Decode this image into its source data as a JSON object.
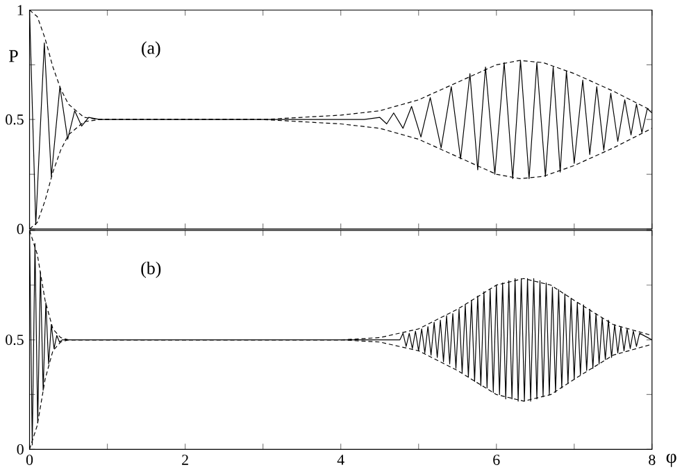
{
  "chart_data": [
    {
      "type": "line",
      "ylabel": "P",
      "annotations": [
        "(a)"
      ],
      "xlim": [
        0,
        8
      ],
      "ylim": [
        0,
        1
      ],
      "xticks": [
        0,
        {
          "value": 1,
          "label": null
        },
        2,
        {
          "value": 3,
          "label": null
        },
        4,
        {
          "value": 5,
          "label": null
        },
        6,
        {
          "value": 7,
          "label": null
        },
        8
      ],
      "yticks": [
        0,
        {
          "value": 0.25,
          "label": null
        },
        0.5,
        {
          "value": 0.75,
          "label": null
        },
        1
      ],
      "tick_labels": "y",
      "marker": "none",
      "series": [
        {
          "color": "#000000",
          "line_style": "solid",
          "x": [
            0,
            0.08,
            0.19,
            0.28,
            0.39,
            0.49,
            0.58,
            0.67,
            0.76,
            0.9,
            4.3,
            4.5,
            4.59,
            4.68,
            4.8,
            4.91,
            5.03,
            5.15,
            5.29,
            5.42,
            5.54,
            5.66,
            5.76,
            5.86,
            5.98,
            6.1,
            6.21,
            6.31,
            6.42,
            6.52,
            6.63,
            6.73,
            6.82,
            6.9,
            7.0,
            7.11,
            7.2,
            7.29,
            7.38,
            7.47,
            7.56,
            7.65,
            7.73,
            7.8,
            7.87,
            7.94,
            8.0
          ],
          "values": [
            1.0,
            0.02,
            0.85,
            0.24,
            0.65,
            0.41,
            0.54,
            0.47,
            0.51,
            0.5,
            0.5,
            0.51,
            0.48,
            0.53,
            0.46,
            0.56,
            0.42,
            0.6,
            0.37,
            0.65,
            0.32,
            0.71,
            0.27,
            0.74,
            0.25,
            0.76,
            0.23,
            0.77,
            0.23,
            0.76,
            0.24,
            0.74,
            0.26,
            0.72,
            0.3,
            0.68,
            0.34,
            0.65,
            0.36,
            0.62,
            0.4,
            0.59,
            0.43,
            0.57,
            0.44,
            0.55,
            0.53
          ]
        },
        {
          "color": "#000000",
          "line_style": "dashed",
          "x": [
            0,
            0.1,
            0.2,
            0.3,
            0.4,
            0.5,
            0.6,
            0.7,
            0.9,
            2,
            3,
            3.5,
            4,
            4.5,
            5,
            5.5,
            6,
            6.3,
            6.6,
            7,
            7.5,
            8
          ],
          "values": [
            1.0,
            0.97,
            0.87,
            0.74,
            0.64,
            0.57,
            0.54,
            0.51,
            0.5,
            0.5,
            0.5,
            0.51,
            0.52,
            0.54,
            0.59,
            0.67,
            0.75,
            0.77,
            0.76,
            0.71,
            0.63,
            0.54
          ]
        },
        {
          "color": "#000000",
          "line_style": "dashed",
          "x": [
            0,
            0.1,
            0.2,
            0.3,
            0.4,
            0.5,
            0.6,
            0.7,
            0.9,
            2,
            3,
            3.5,
            4,
            4.5,
            5,
            5.5,
            6,
            6.3,
            6.6,
            7,
            7.5,
            8
          ],
          "values": [
            0.0,
            0.03,
            0.13,
            0.26,
            0.36,
            0.43,
            0.46,
            0.49,
            0.5,
            0.5,
            0.5,
            0.49,
            0.48,
            0.46,
            0.41,
            0.33,
            0.25,
            0.23,
            0.24,
            0.29,
            0.37,
            0.46
          ]
        }
      ]
    },
    {
      "type": "line",
      "xlabel": "φ",
      "annotations": [
        "(b)"
      ],
      "xlim": [
        0,
        8
      ],
      "ylim": [
        0,
        1
      ],
      "xticks": [
        0,
        {
          "value": 1,
          "label": null
        },
        2,
        {
          "value": 3,
          "label": null
        },
        4,
        {
          "value": 5,
          "label": null
        },
        6,
        {
          "value": 7,
          "label": null
        },
        8
      ],
      "yticks": [
        0,
        {
          "value": 0.25,
          "label": null
        },
        0.5,
        {
          "value": 0.75,
          "label": null
        },
        {
          "value": 1,
          "label": null
        }
      ],
      "marker": "none",
      "series": [
        {
          "color": "#000000",
          "line_style": "solid",
          "x": [
            0,
            0.035,
            0.07,
            0.105,
            0.14,
            0.175,
            0.21,
            0.245,
            0.28,
            0.315,
            0.35,
            0.385,
            0.42,
            0.6,
            4.76,
            4.8,
            4.84,
            4.88,
            4.92,
            4.96,
            5.0,
            5.04,
            5.08,
            5.12,
            5.16,
            5.2,
            5.24,
            5.28,
            5.32,
            5.36,
            5.4,
            5.44,
            5.48,
            5.52,
            5.56,
            5.6,
            5.64,
            5.68,
            5.72,
            5.76,
            5.8,
            5.84,
            5.88,
            5.92,
            5.96,
            6.0,
            6.04,
            6.08,
            6.12,
            6.16,
            6.2,
            6.24,
            6.28,
            6.32,
            6.36,
            6.4,
            6.44,
            6.48,
            6.52,
            6.56,
            6.6,
            6.64,
            6.68,
            6.72,
            6.76,
            6.8,
            6.84,
            6.88,
            6.92,
            6.96,
            7.0,
            7.04,
            7.08,
            7.12,
            7.16,
            7.2,
            7.24,
            7.28,
            7.32,
            7.36,
            7.4,
            7.44,
            7.48,
            7.52,
            7.56,
            7.6,
            7.64,
            7.68,
            7.72,
            7.76,
            7.8,
            7.84,
            8.0
          ],
          "values": [
            1.0,
            0.02,
            0.94,
            0.12,
            0.81,
            0.27,
            0.67,
            0.39,
            0.57,
            0.46,
            0.52,
            0.49,
            0.5,
            0.5,
            0.5,
            0.53,
            0.47,
            0.53,
            0.46,
            0.54,
            0.45,
            0.55,
            0.44,
            0.56,
            0.43,
            0.58,
            0.42,
            0.59,
            0.4,
            0.61,
            0.39,
            0.62,
            0.37,
            0.64,
            0.35,
            0.66,
            0.33,
            0.68,
            0.31,
            0.7,
            0.29,
            0.72,
            0.28,
            0.73,
            0.26,
            0.75,
            0.25,
            0.76,
            0.23,
            0.77,
            0.23,
            0.78,
            0.22,
            0.78,
            0.22,
            0.78,
            0.22,
            0.78,
            0.23,
            0.77,
            0.24,
            0.76,
            0.25,
            0.74,
            0.26,
            0.73,
            0.28,
            0.71,
            0.3,
            0.69,
            0.32,
            0.67,
            0.34,
            0.66,
            0.36,
            0.64,
            0.37,
            0.62,
            0.39,
            0.6,
            0.41,
            0.59,
            0.42,
            0.57,
            0.44,
            0.56,
            0.45,
            0.55,
            0.46,
            0.54,
            0.47,
            0.53,
            0.5
          ]
        },
        {
          "color": "#000000",
          "line_style": "dashed",
          "x": [
            0,
            0.1,
            0.2,
            0.3,
            0.4,
            0.5,
            0.7,
            4,
            4.5,
            5,
            5.5,
            6,
            6.35,
            6.7,
            7,
            7.5,
            8
          ],
          "values": [
            1.0,
            0.89,
            0.68,
            0.55,
            0.51,
            0.5,
            0.5,
            0.5,
            0.51,
            0.55,
            0.64,
            0.75,
            0.78,
            0.75,
            0.68,
            0.57,
            0.52
          ]
        },
        {
          "color": "#000000",
          "line_style": "dashed",
          "x": [
            0,
            0.1,
            0.2,
            0.3,
            0.4,
            0.5,
            0.7,
            4,
            4.5,
            5,
            5.5,
            6,
            6.35,
            6.7,
            7,
            7.5,
            8
          ],
          "values": [
            0.0,
            0.11,
            0.32,
            0.45,
            0.49,
            0.5,
            0.5,
            0.5,
            0.49,
            0.45,
            0.36,
            0.25,
            0.22,
            0.25,
            0.32,
            0.43,
            0.48
          ]
        }
      ]
    }
  ]
}
